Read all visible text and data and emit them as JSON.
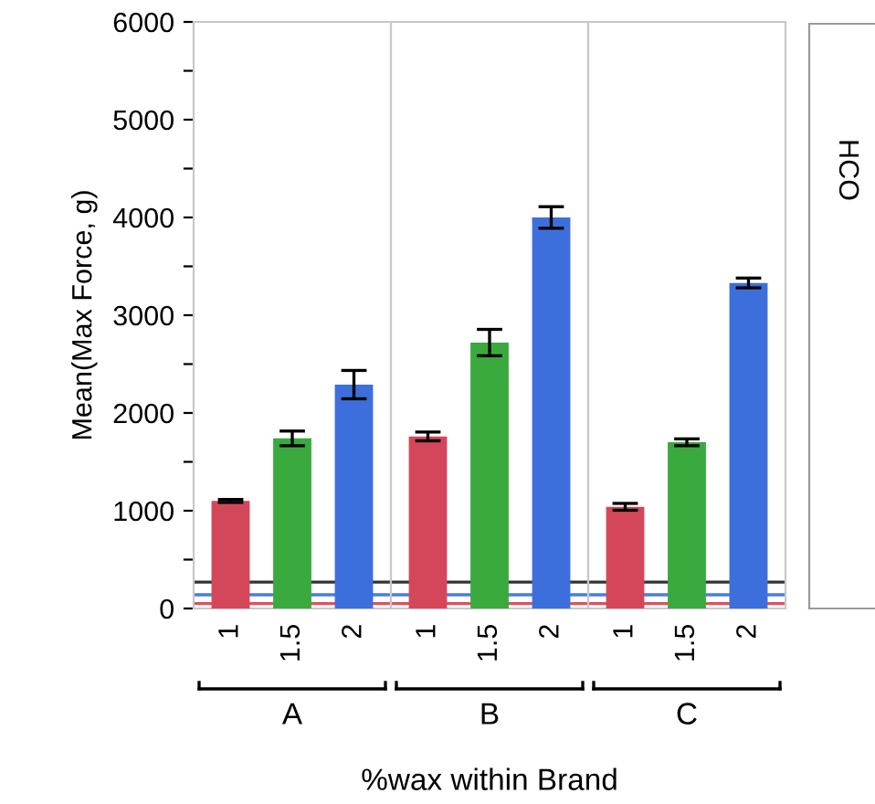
{
  "chart_data": [
    {
      "type": "bar",
      "xlabel": "A",
      "ylabel": "Mean(Max Force, g)",
      "categories": [
        "1",
        "1.5",
        "2"
      ],
      "values": [
        1100,
        1740,
        2290
      ],
      "errors": [
        15,
        75,
        145
      ],
      "colors": [
        "#d4475a",
        "#3aaa3f",
        "#3d6fdc"
      ],
      "ylim": [
        0,
        6000
      ],
      "yticks": [
        0,
        {
          "value": 500,
          "label": null
        },
        1000,
        {
          "value": 1500,
          "label": null
        },
        2000,
        {
          "value": 2500,
          "label": null
        },
        3000,
        {
          "value": 3500,
          "label": null
        },
        4000,
        {
          "value": 4500,
          "label": null
        },
        5000,
        {
          "value": 5500,
          "label": null
        },
        6000
      ],
      "ref_lines": [
        {
          "axis": "y",
          "value": 270,
          "color": "#333333"
        },
        {
          "axis": "y",
          "value": 140,
          "color": "#4a7de0"
        },
        {
          "axis": "y",
          "value": 50,
          "color": "#e05060"
        }
      ],
      "annotations": [
        "%wax within Brand"
      ],
      "grid": false
    },
    {
      "type": "bar",
      "xlabel": "B",
      "categories": [
        "1",
        "1.5",
        "2"
      ],
      "values": [
        1760,
        2720,
        4000
      ],
      "errors": [
        45,
        135,
        110
      ],
      "colors": [
        "#d4475a",
        "#3aaa3f",
        "#3d6fdc"
      ],
      "ylim": [
        0,
        6000
      ],
      "tick_labels": "x",
      "ref_lines": [
        {
          "axis": "y",
          "value": 270,
          "color": "#333333"
        },
        {
          "axis": "y",
          "value": 140,
          "color": "#4a7de0"
        },
        {
          "axis": "y",
          "value": 50,
          "color": "#e05060"
        }
      ],
      "grid": false
    },
    {
      "type": "bar",
      "xlabel": "C",
      "categories": [
        "1",
        "1.5",
        "2"
      ],
      "values": [
        1040,
        1700,
        3330
      ],
      "errors": [
        35,
        35,
        50
      ],
      "colors": [
        "#d4475a",
        "#3aaa3f",
        "#3d6fdc"
      ],
      "ylim": [
        0,
        6000
      ],
      "tick_labels": "x",
      "ref_lines": [
        {
          "axis": "y",
          "value": 270,
          "color": "#333333"
        },
        {
          "axis": "y",
          "value": 140,
          "color": "#4a7de0"
        },
        {
          "axis": "y",
          "value": 50,
          "color": "#e05060"
        }
      ],
      "grid": false
    },
    {
      "type": "other",
      "annotations": [
        "HCO"
      ]
    }
  ]
}
